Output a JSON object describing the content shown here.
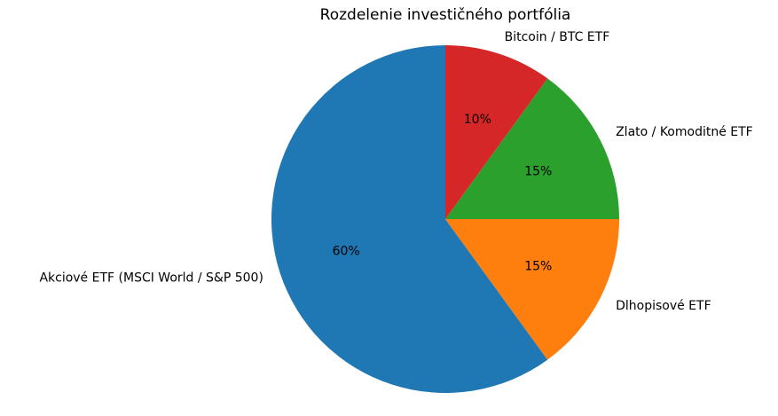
{
  "chart_data": {
    "type": "pie",
    "title": "Rozdelenie investičného portfólia",
    "categories": [
      "Akciové ETF (MSCI World / S&P 500)",
      "Dlhopisové ETF",
      "Zlato / Komoditné ETF",
      "Bitcoin / BTC ETF"
    ],
    "values": [
      60,
      15,
      15,
      10
    ],
    "value_labels": [
      "60%",
      "15%",
      "15%",
      "10%"
    ],
    "colors": [
      "#1f77b4",
      "#ff7f0e",
      "#2ca02c",
      "#d62728"
    ]
  }
}
